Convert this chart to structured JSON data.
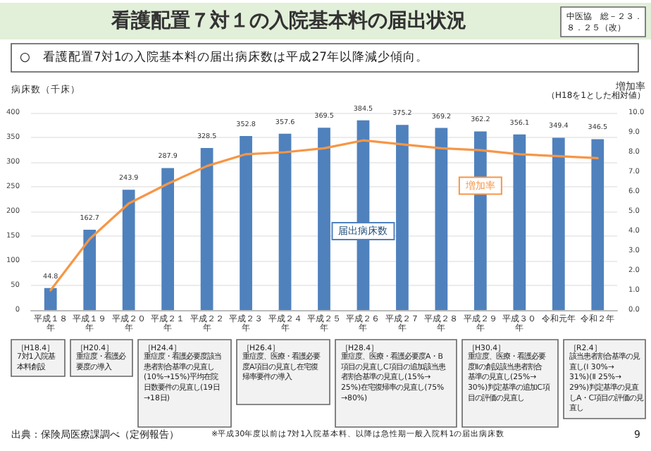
{
  "chart_data": {
    "type": "bar",
    "title": "看護配置７対１の入院基本料の届出状況",
    "subtitle": "○　看護配置7対1の入院基本料の届出病床数は平成27年以降減少傾向。",
    "ylabel": "病床数（千床）",
    "y2label": "増加率",
    "categories": [
      "平成１８年",
      "平成１９年",
      "平成２０年",
      "平成２１年",
      "平成２２年",
      "平成２３年",
      "平成２４年",
      "平成２５年",
      "平成２６年",
      "平成２７年",
      "平成２８年",
      "平成２９年",
      "平成３０年",
      "令和元年",
      "令和２年"
    ],
    "series": [
      {
        "name": "届出病床数",
        "color": "#4f81bd",
        "values": [
          44.8,
          162.7,
          243.9,
          287.9,
          328.5,
          352.8,
          357.6,
          369.5,
          384.5,
          375.2,
          369.2,
          362.2,
          356.1,
          349.4,
          346.5
        ],
        "value_labels": [
          "44.8",
          "162.7",
          "243.9",
          "287.9",
          "328.5",
          "352.8",
          "357.6",
          "369.5",
          "384.5",
          "375.2",
          "369.2",
          "362.2",
          "356.1",
          "349.4",
          "346.5"
        ]
      },
      {
        "name": "増加率",
        "type": "line",
        "axis": "y2",
        "color": "#f79646",
        "values": [
          1.0,
          3.6,
          5.4,
          6.4,
          7.3,
          7.9,
          8.0,
          8.2,
          8.6,
          8.4,
          8.2,
          8.1,
          7.9,
          7.8,
          7.7
        ]
      }
    ],
    "ylim": [
      0,
      400
    ],
    "yticks": [
      0,
      50,
      100,
      150,
      200,
      250,
      300,
      350,
      400
    ],
    "y2lim": [
      0,
      10
    ],
    "y2ticks": [
      {
        "value": 0,
        "label": "0.0"
      },
      {
        "value": 1,
        "label": "1.0"
      },
      {
        "value": 2,
        "label": "2.0"
      },
      {
        "value": 3,
        "label": "3.0"
      },
      {
        "value": 4,
        "label": "4.0"
      },
      {
        "value": 5,
        "label": "5.0"
      },
      {
        "value": 6,
        "label": "6.0"
      },
      {
        "value": 7,
        "label": "7.0"
      },
      {
        "value": 8,
        "label": "8.0"
      },
      {
        "value": 9,
        "label": "9.0"
      },
      {
        "value": 10,
        "label": "10.0"
      }
    ],
    "grid": "y",
    "legend": false,
    "marker": "none",
    "line_style": "solid",
    "annotations": [
      "中医協　総－２３．８．２５（改）",
      "（H18を1とした相対値）",
      "［H18.4］",
      "7対1入院基本料創設",
      "［H20.4］",
      "重症度・看護必要度の導入",
      "［H24.4］",
      "重症度・看護必要度該当患者割合基準の見直し(10%→15%)平均在院日数要件の見直し(19日→18日)",
      "［H26.4］",
      "重症度、医療・看護必要度A項目の見直し在宅復帰率要件の導入",
      "［H28.4］",
      "重症度、医療・看護必要度A・B項目の見直しC項目の追加該当患者割合基準の見直し(15%→25%)在宅復帰率の見直し(75%→80%)",
      "［H30.4］",
      "重症度、医療・看護必要度Ⅱの創設該当患者割合基準の見直し(25%→30%)判定基準の追加C項目の評価の見直し",
      "［R2.4］",
      "該当患者割合基準の見直し(Ⅰ 30%→31%)(Ⅱ 25%→29%)判定基準の見直しA・C項目の評価の見直し",
      "出典：保険局医療課調べ（定例報告）",
      "※平成30年度以前は7対1入院基本料、以降は急性期一般入院料1の届出病床数",
      "9"
    ]
  }
}
